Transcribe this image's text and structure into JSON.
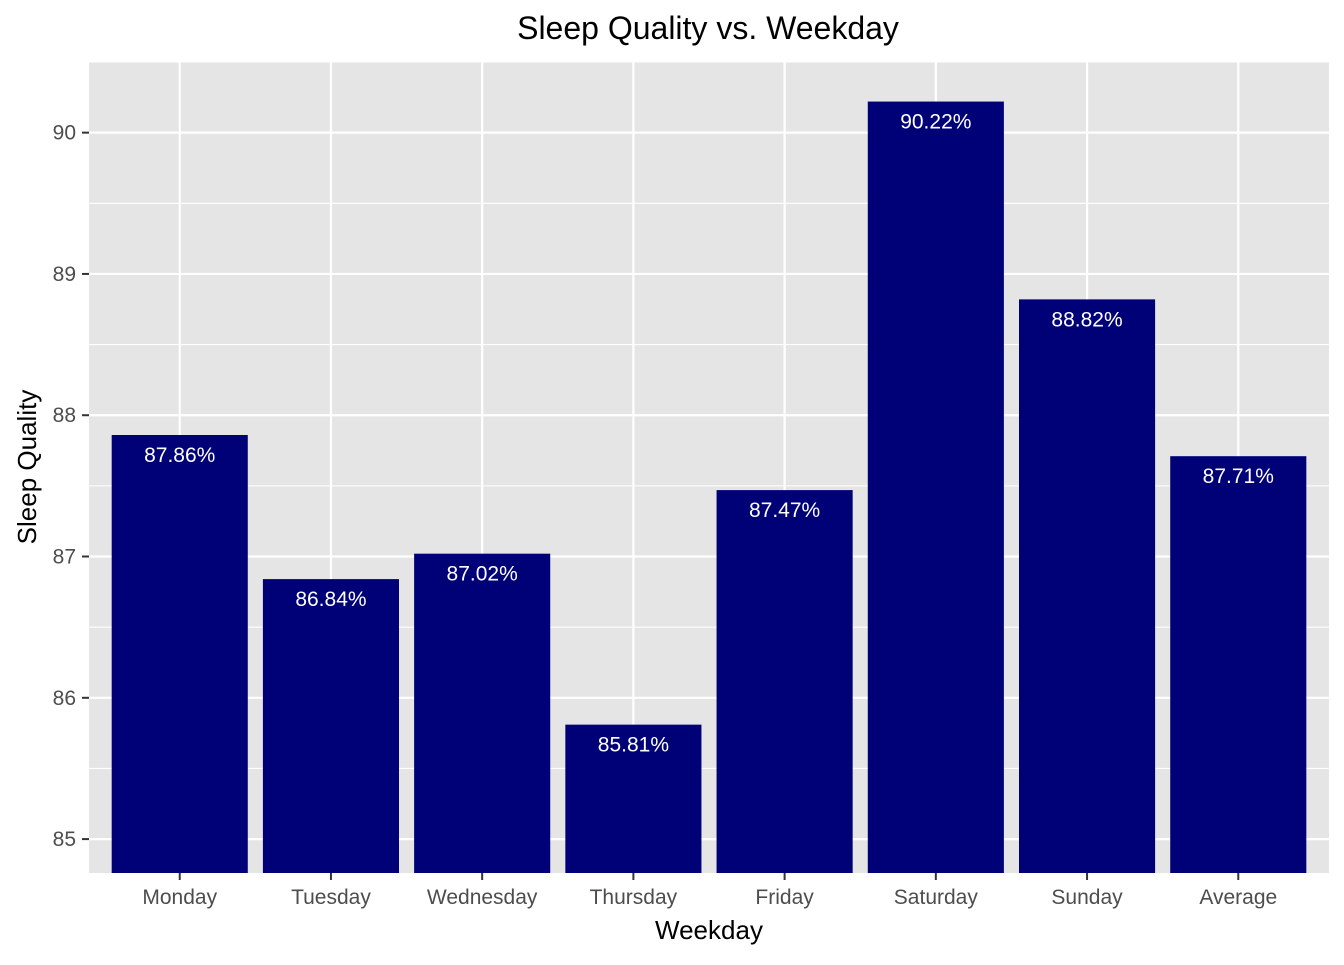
{
  "chart_data": {
    "type": "bar",
    "title": "Sleep Quality vs. Weekday",
    "xlabel": "Weekday",
    "ylabel": "Sleep Quality",
    "categories": [
      "Monday",
      "Tuesday",
      "Wednesday",
      "Thursday",
      "Friday",
      "Saturday",
      "Sunday",
      "Average"
    ],
    "values": [
      87.86,
      86.84,
      87.02,
      85.81,
      87.47,
      90.22,
      88.82,
      87.71
    ],
    "data_labels": [
      "87.86%",
      "86.84%",
      "87.02%",
      "85.81%",
      "87.47%",
      "90.22%",
      "88.82%",
      "87.71%"
    ],
    "ylim": [
      84.76,
      90.5
    ],
    "y_ticks": [
      85,
      86,
      87,
      88,
      89,
      90
    ],
    "y_tick_labels": [
      "85",
      "86",
      "87",
      "88",
      "89",
      "90"
    ],
    "grid": true,
    "legend": "none",
    "colors": {
      "bar": "#000077",
      "panel_background": "#e5e5e5",
      "grid": "#ffffff",
      "data_label": "#ffffff"
    }
  }
}
